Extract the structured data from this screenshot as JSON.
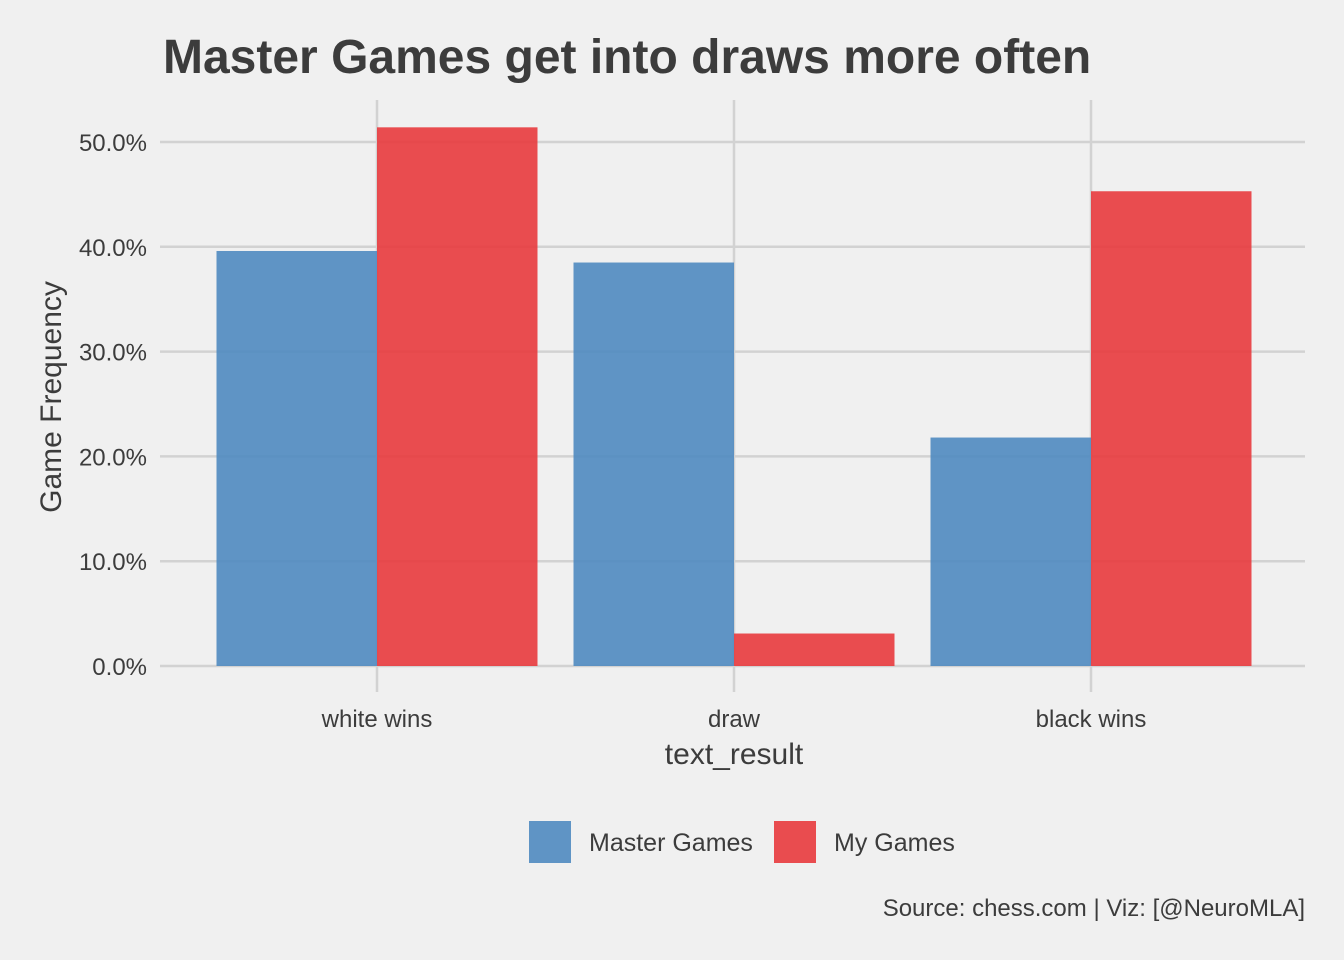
{
  "chart_data": {
    "type": "bar",
    "title": "Master Games get into draws more often",
    "xlabel": "text_result",
    "ylabel": "Game Frequency",
    "categories": [
      "white wins",
      "draw",
      "black wins"
    ],
    "series": [
      {
        "name": "Master Games",
        "color": "#4f8ac0",
        "values": [
          0.396,
          0.385,
          0.218
        ]
      },
      {
        "name": "My Games",
        "color": "#e83a3d",
        "values": [
          0.514,
          0.031,
          0.453
        ]
      }
    ],
    "ylim": [
      0,
      0.5
    ],
    "yticks": [
      0,
      0.1,
      0.2,
      0.3,
      0.4,
      0.5
    ],
    "ytick_labels": [
      "0.0%",
      "10.0%",
      "20.0%",
      "30.0%",
      "40.0%",
      "50.0%"
    ],
    "grid": true,
    "legend_position": "bottom",
    "caption": "Source: chess.com | Viz: [@NeuroMLA]"
  }
}
